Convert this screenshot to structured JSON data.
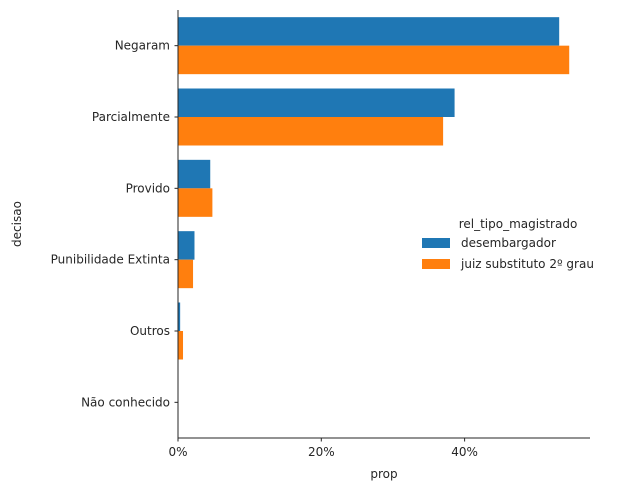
{
  "chart_data": {
    "type": "bar",
    "orientation": "horizontal",
    "categories": [
      "Negaram",
      "Parcialmente",
      "Provido",
      "Punibilidade Extinta",
      "Outros",
      "Não conhecido"
    ],
    "series": [
      {
        "name": "desembargador",
        "color": "#1f77b4",
        "values": [
          0.532,
          0.386,
          0.045,
          0.023,
          0.003,
          0.0
        ]
      },
      {
        "name": "juiz substituto 2º grau",
        "color": "#ff7f0e",
        "values": [
          0.546,
          0.37,
          0.048,
          0.021,
          0.007,
          0.0
        ]
      }
    ],
    "xlabel": "prop",
    "ylabel": "decisao",
    "xlim": [
      0,
      0.575
    ],
    "xticks": [
      0,
      0.2,
      0.4
    ],
    "xtick_labels": [
      "0%",
      "20%",
      "40%"
    ],
    "legend_title": "rel_tipo_magistrado",
    "legend_position": "right"
  }
}
